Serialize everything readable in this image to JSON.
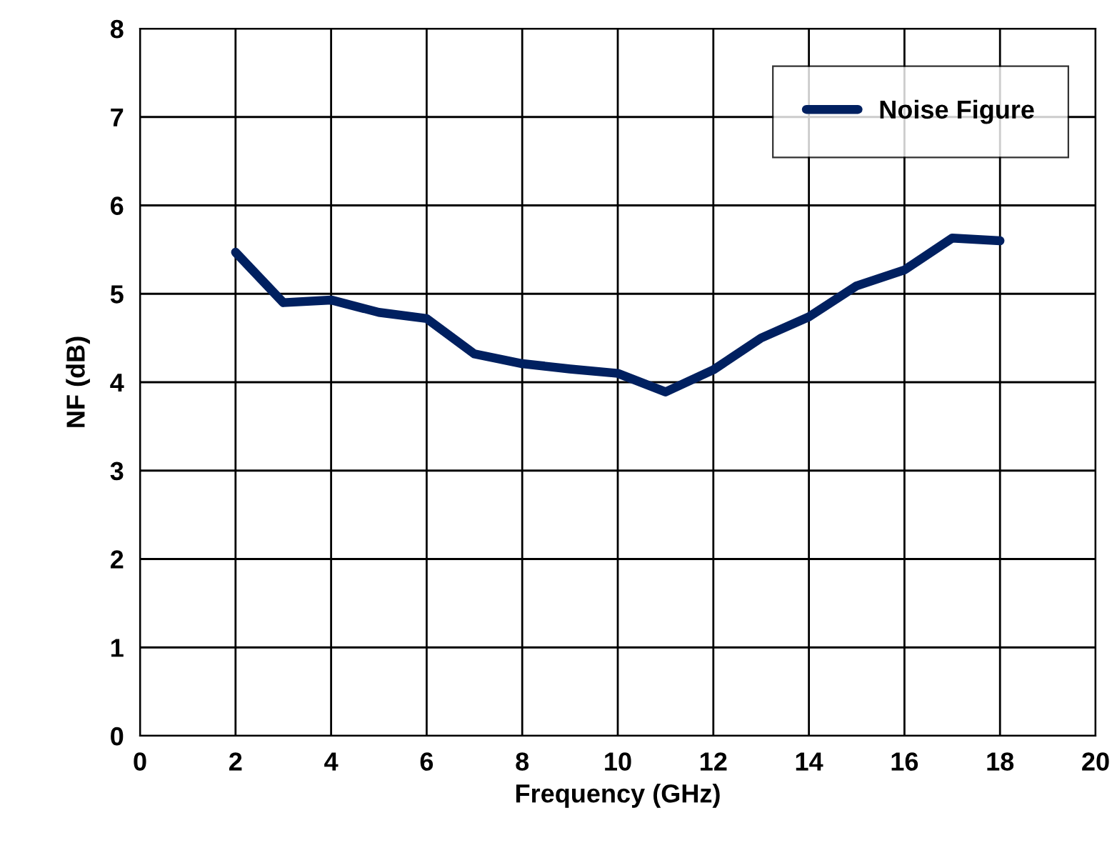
{
  "chart_data": {
    "type": "line",
    "xlabel": "Frequency (GHz)",
    "ylabel": "NF (dB)",
    "x": [
      2,
      3,
      4,
      5,
      6,
      7,
      8,
      9,
      10,
      11,
      12,
      13,
      14,
      15,
      16,
      17,
      18
    ],
    "series": [
      {
        "name": "Noise Figure",
        "color": "#002060",
        "values": [
          5.47,
          4.9,
          4.93,
          4.79,
          4.72,
          4.32,
          4.21,
          4.15,
          4.1,
          3.89,
          4.14,
          4.5,
          4.74,
          5.09,
          5.27,
          5.63,
          5.6
        ]
      }
    ],
    "xlim": [
      0,
      20
    ],
    "xticks": [
      0,
      2,
      4,
      6,
      8,
      10,
      12,
      14,
      16,
      18,
      20
    ],
    "ylim": [
      0,
      8
    ],
    "yticks": [
      0,
      1,
      2,
      3,
      4,
      5,
      6,
      7,
      8
    ],
    "grid": true,
    "legend": "top right",
    "marker": "none",
    "line_style": "solid"
  }
}
